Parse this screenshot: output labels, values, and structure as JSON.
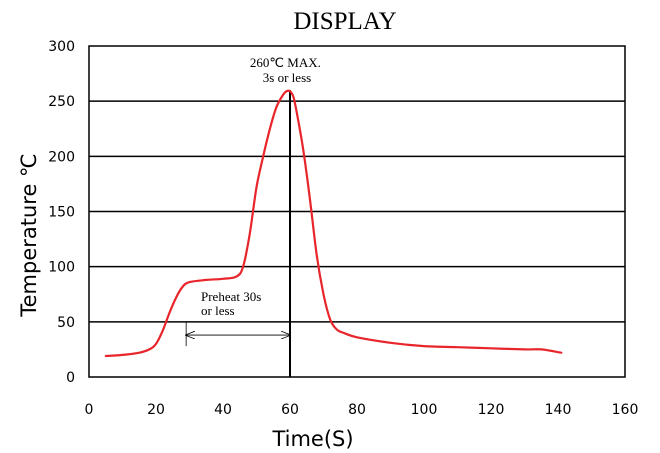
{
  "chart_data": {
    "type": "line",
    "title": "DISPLAY",
    "xlabel": "Time(S)",
    "ylabel": "Temperature ℃",
    "xlim": [
      0,
      160
    ],
    "ylim": [
      0,
      300
    ],
    "xticks": [
      0,
      20,
      40,
      60,
      80,
      100,
      120,
      140,
      160
    ],
    "yticks": [
      0,
      50,
      100,
      150,
      200,
      250,
      300
    ],
    "grid": "horizontal",
    "line_color": "#e8252a",
    "series": [
      {
        "x": [
          5,
          10,
          15,
          18,
          20,
          22,
          24,
          26,
          28,
          30,
          35,
          40,
          44,
          46,
          48,
          50,
          52,
          54,
          56,
          58,
          59,
          60,
          61,
          62,
          64,
          66,
          68,
          70,
          72,
          74,
          76,
          80,
          90,
          100,
          110,
          120,
          130,
          135,
          141
        ],
        "y": [
          19,
          20,
          22,
          25,
          30,
          42,
          58,
          72,
          82,
          86,
          88,
          89,
          91,
          100,
          130,
          172,
          200,
          225,
          245,
          256,
          259,
          259,
          254,
          240,
          205,
          160,
          110,
          75,
          52,
          43,
          40,
          36,
          31,
          28,
          27,
          26,
          25,
          25,
          22
        ]
      }
    ],
    "annotations": [
      {
        "lines": [
          "260℃ MAX.",
          "3s or less"
        ]
      },
      {
        "lines": [
          "Preheat 30s",
          "or less"
        ]
      }
    ],
    "peak_marker_x": 60,
    "preheat_span": {
      "x": [
        29,
        60
      ],
      "y": 38,
      "bracket_bottom": 28
    }
  }
}
